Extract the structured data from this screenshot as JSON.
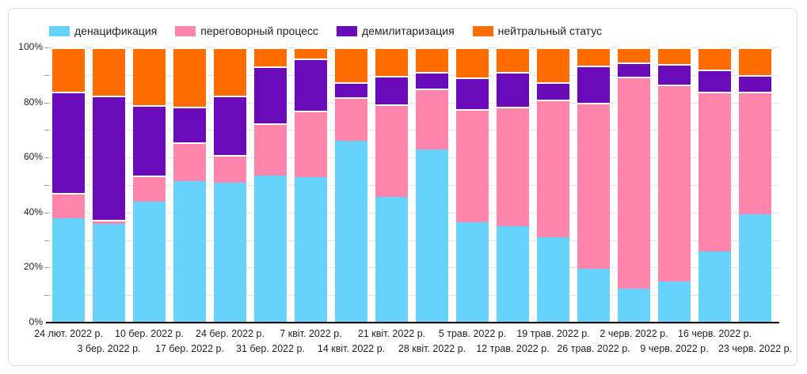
{
  "legend": [
    {
      "label": "денацификация",
      "color": "#67d2fb"
    },
    {
      "label": "переговорный процесс",
      "color": "#ff85ad"
    },
    {
      "label": "демилитаризация",
      "color": "#6a0bb9"
    },
    {
      "label": "нейтральный статус",
      "color": "#ff6d00"
    }
  ],
  "y_axis": {
    "ticks": [
      "0%",
      "20%",
      "40%",
      "60%",
      "80%",
      "100%"
    ],
    "minor_step_percent": 10
  },
  "colors": {
    "gridline": "#e4e4e4",
    "tick": "#9e9e9e",
    "axis_line": "#000000",
    "card_border": "#dadce0"
  },
  "chart_data": {
    "type": "bar",
    "stacked": true,
    "percent": true,
    "ylim": [
      0,
      100
    ],
    "grid": true,
    "legend_position": "top",
    "categories": [
      "24 лют. 2022 р.",
      "3 бер. 2022 р.",
      "10 бер. 2022 р.",
      "17 бер. 2022 р.",
      "24 бер. 2022 р.",
      "31 бер. 2022 р.",
      "7 квіт. 2022 р.",
      "14 квіт. 2022 р.",
      "21 квіт. 2022 р.",
      "28 квіт. 2022 р.",
      "5 трав. 2022 р.",
      "12 трав. 2022 р.",
      "19 трав. 2022 р.",
      "26 трав. 2022 р.",
      "2 черв. 2022 р.",
      "9 черв. 2022 р.",
      "16 черв. 2022 р.",
      "23 черв. 2022 р."
    ],
    "series": [
      {
        "name": "денацификация",
        "color": "#67d2fb",
        "values": [
          38,
          36,
          44,
          51.5,
          51,
          53.5,
          53,
          66,
          49,
          63,
          36.5,
          35,
          31,
          19.5,
          12.5,
          15,
          26,
          39.5
        ]
      },
      {
        "name": "переговорный процесс",
        "color": "#ff85ad",
        "values": [
          9,
          1.5,
          9.5,
          14,
          10,
          19,
          24,
          16,
          36,
          22,
          41,
          43.5,
          50,
          60.5,
          77,
          71.5,
          58,
          44.5
        ]
      },
      {
        "name": "демилитаризация",
        "color": "#6a0bb9",
        "values": [
          37,
          45,
          25.5,
          13,
          21.5,
          20.5,
          19,
          5.5,
          11,
          6,
          11.5,
          12.5,
          6.5,
          13.5,
          5,
          7.5,
          8,
          6
        ]
      },
      {
        "name": "нейтральный статус",
        "color": "#ff6d00",
        "values": [
          16,
          17.5,
          21,
          21.5,
          17.5,
          7,
          4,
          12.5,
          11,
          9,
          11,
          9,
          12.5,
          6.5,
          5.5,
          6,
          8,
          10
        ]
      }
    ]
  }
}
